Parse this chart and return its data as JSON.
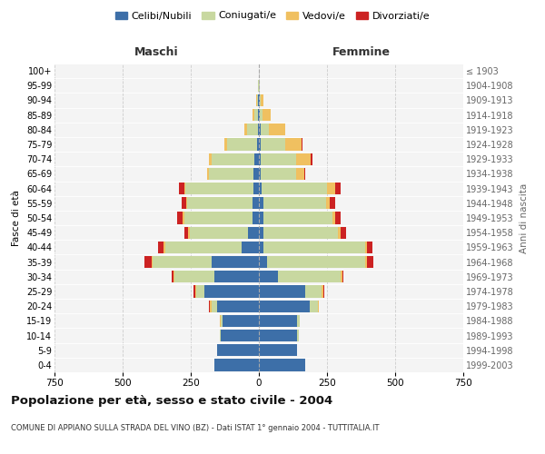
{
  "age_groups": [
    "0-4",
    "5-9",
    "10-14",
    "15-19",
    "20-24",
    "25-29",
    "30-34",
    "35-39",
    "40-44",
    "45-49",
    "50-54",
    "55-59",
    "60-64",
    "65-69",
    "70-74",
    "75-79",
    "80-84",
    "85-89",
    "90-94",
    "95-99",
    "100+"
  ],
  "birth_years": [
    "1999-2003",
    "1994-1998",
    "1989-1993",
    "1984-1988",
    "1979-1983",
    "1974-1978",
    "1969-1973",
    "1964-1968",
    "1959-1963",
    "1954-1958",
    "1949-1953",
    "1944-1948",
    "1939-1943",
    "1934-1938",
    "1929-1933",
    "1924-1928",
    "1919-1923",
    "1914-1918",
    "1909-1913",
    "1904-1908",
    "≤ 1903"
  ],
  "males": {
    "celibi": [
      165,
      155,
      140,
      135,
      155,
      200,
      165,
      175,
      65,
      40,
      25,
      22,
      20,
      20,
      18,
      8,
      5,
      3,
      2,
      1,
      0
    ],
    "coniugati": [
      0,
      0,
      5,
      5,
      20,
      30,
      145,
      215,
      280,
      215,
      250,
      240,
      250,
      165,
      155,
      110,
      40,
      15,
      5,
      2,
      0
    ],
    "vedovi": [
      0,
      0,
      0,
      5,
      5,
      5,
      5,
      5,
      5,
      5,
      5,
      5,
      5,
      5,
      10,
      10,
      10,
      5,
      2,
      0,
      0
    ],
    "divorziati": [
      0,
      0,
      0,
      0,
      5,
      5,
      5,
      25,
      20,
      15,
      20,
      15,
      20,
      0,
      0,
      0,
      0,
      0,
      0,
      0,
      0
    ]
  },
  "females": {
    "nubili": [
      170,
      140,
      140,
      140,
      185,
      170,
      70,
      30,
      15,
      15,
      15,
      15,
      10,
      5,
      5,
      5,
      5,
      3,
      2,
      1,
      0
    ],
    "coniugate": [
      0,
      0,
      5,
      10,
      30,
      60,
      230,
      360,
      375,
      275,
      255,
      230,
      240,
      130,
      130,
      90,
      30,
      10,
      5,
      1,
      0
    ],
    "vedove": [
      0,
      0,
      0,
      0,
      5,
      5,
      5,
      5,
      5,
      10,
      10,
      15,
      30,
      30,
      55,
      60,
      60,
      30,
      8,
      2,
      1
    ],
    "divorziate": [
      0,
      0,
      0,
      0,
      0,
      5,
      5,
      25,
      20,
      20,
      20,
      20,
      20,
      5,
      5,
      5,
      0,
      0,
      0,
      0,
      0
    ]
  },
  "colors": {
    "celibi": "#3d6fa8",
    "coniugati": "#c8d8a0",
    "vedovi": "#f0c060",
    "divorziati": "#cc2222"
  },
  "xlim": 750,
  "title": "Popolazione per età, sesso e stato civile - 2004",
  "subtitle": "COMUNE DI APPIANO SULLA STRADA DEL VINO (BZ) - Dati ISTAT 1° gennaio 2004 - TUTTITALIA.IT",
  "ylabel_left": "Fasce di età",
  "ylabel_right": "Anni di nascita",
  "xlabel_maschi": "Maschi",
  "xlabel_femmine": "Femmine",
  "plot_bg": "#f4f4f4",
  "fig_bg": "#ffffff",
  "grid_color": "#cccccc"
}
